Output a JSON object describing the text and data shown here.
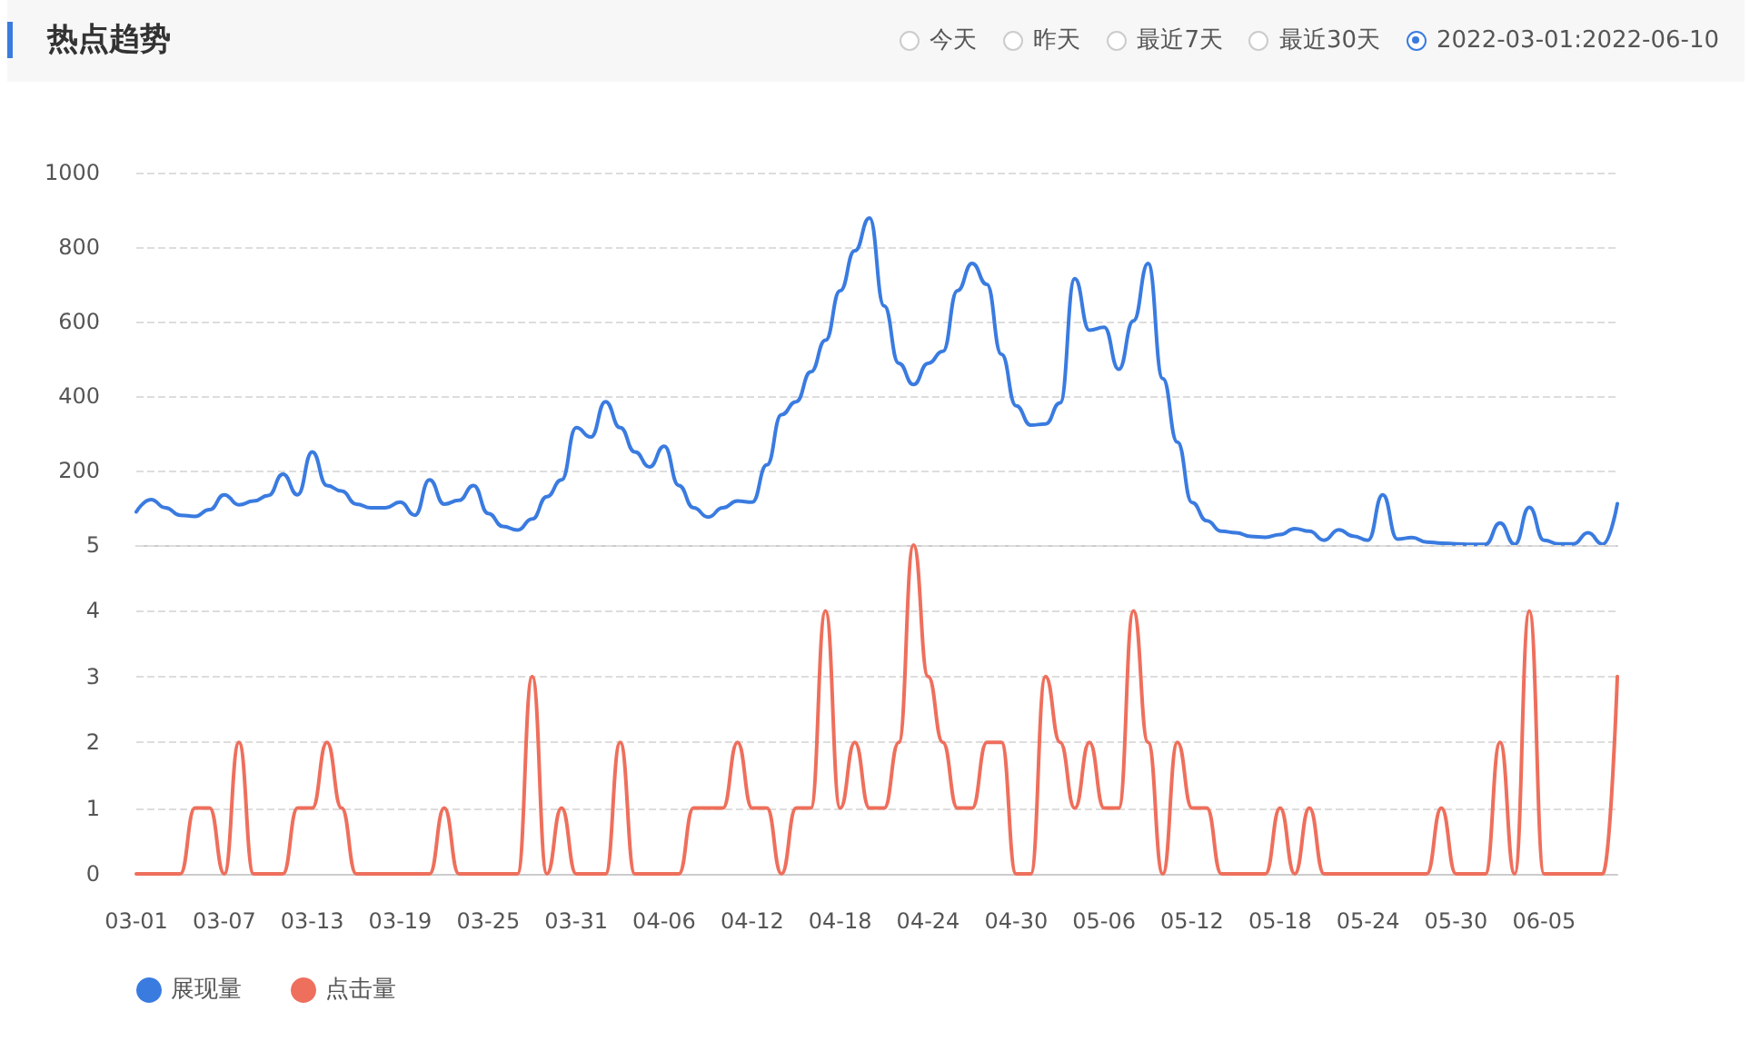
{
  "chart_data": [
    {
      "type": "line",
      "title": "热点趋势",
      "annotations": [
        "今天",
        "昨天",
        "最近7天",
        "最近30天",
        "2022-03-01:2022-06-10"
      ],
      "categories": [
        null,
        null,
        null,
        null,
        null,
        null,
        null,
        null,
        null,
        null,
        null,
        null,
        null,
        null,
        null,
        null,
        null,
        null,
        null,
        null,
        null,
        null,
        null,
        null,
        null,
        null,
        null,
        null,
        null,
        null,
        null,
        null,
        null,
        null,
        null,
        null,
        null,
        null,
        null,
        null,
        null,
        null,
        null,
        null,
        null,
        null,
        null,
        null,
        null,
        null,
        null,
        null,
        null,
        null,
        null,
        null,
        null,
        null,
        null,
        null,
        null,
        null,
        null,
        null,
        null,
        null,
        null,
        null,
        null,
        null,
        null,
        null,
        null,
        null,
        null,
        null,
        null,
        null,
        null,
        null,
        null,
        null,
        null,
        null,
        null,
        null,
        null,
        null,
        null,
        null,
        null,
        null,
        null,
        null,
        null,
        null,
        null,
        null,
        null,
        null,
        null,
        null
      ],
      "series": [
        {
          "name": "展现量",
          "color": "#3a7be0",
          "values": [
            89,
            122,
            100,
            80,
            77,
            95,
            135,
            108,
            118,
            133,
            190,
            135,
            250,
            160,
            145,
            110,
            100,
            100,
            115,
            80,
            175,
            110,
            120,
            160,
            85,
            50,
            40,
            70,
            130,
            175,
            315,
            290,
            385,
            315,
            250,
            210,
            265,
            160,
            100,
            75,
            100,
            118,
            115,
            215,
            350,
            385,
            465,
            550,
            683,
            790,
            878,
            642,
            488,
            431,
            488,
            520,
            683,
            756,
            700,
            512,
            374,
            322,
            325,
            382,
            715,
            577,
            585,
            472,
            602,
            756,
            447,
            276,
            114,
            65,
            37,
            33,
            23,
            21,
            28,
            44,
            37,
            13,
            41,
            24,
            13,
            135,
            16,
            20,
            8,
            5,
            3,
            2,
            2,
            59,
            2,
            101,
            13,
            3,
            3,
            33,
            2,
            111
          ]
        }
      ],
      "ylim": [
        0,
        1000
      ],
      "yticks": [
        {
          "value": 0,
          "label": null
        },
        200,
        400,
        600,
        800,
        1000
      ],
      "tick_labels": "y",
      "grid": "y",
      "legend": "bottom left",
      "marker": "none",
      "line_style": "solid"
    },
    {
      "type": "line",
      "categories": [
        "03-01",
        null,
        null,
        null,
        null,
        null,
        "03-07",
        null,
        null,
        null,
        null,
        null,
        "03-13",
        null,
        null,
        null,
        null,
        null,
        "03-19",
        null,
        null,
        null,
        null,
        null,
        "03-25",
        null,
        null,
        null,
        null,
        null,
        "03-31",
        null,
        null,
        null,
        null,
        null,
        "04-06",
        null,
        null,
        null,
        null,
        null,
        "04-12",
        null,
        null,
        null,
        null,
        null,
        "04-18",
        null,
        null,
        null,
        null,
        null,
        "04-24",
        null,
        null,
        null,
        null,
        null,
        "04-30",
        null,
        null,
        null,
        null,
        null,
        "05-06",
        null,
        null,
        null,
        null,
        null,
        "05-12",
        null,
        null,
        null,
        null,
        null,
        "05-18",
        null,
        null,
        null,
        null,
        null,
        "05-24",
        null,
        null,
        null,
        null,
        null,
        "05-30",
        null,
        null,
        null,
        null,
        null,
        "06-05",
        null,
        null,
        null,
        null,
        null
      ],
      "series": [
        {
          "name": "点击量",
          "color": "#ee6f5c",
          "values": [
            0,
            0,
            0,
            0,
            1,
            1,
            0,
            2,
            0,
            0,
            0,
            1,
            1,
            2,
            1,
            0,
            0,
            0,
            0,
            0,
            0,
            1,
            0,
            0,
            0,
            0,
            0,
            3,
            0,
            1,
            0,
            0,
            0,
            2,
            0,
            0,
            0,
            0,
            1,
            1,
            1,
            2,
            1,
            1,
            0,
            1,
            1,
            4,
            1,
            2,
            1,
            1,
            2,
            5,
            3,
            2,
            1,
            1,
            2,
            2,
            0,
            0,
            3,
            2,
            1,
            2,
            1,
            1,
            4,
            2,
            0,
            2,
            1,
            1,
            0,
            0,
            0,
            0,
            1,
            0,
            1,
            0,
            0,
            0,
            0,
            0,
            0,
            0,
            0,
            1,
            0,
            0,
            0,
            2,
            0,
            4,
            0,
            0,
            0,
            0,
            0,
            3
          ]
        }
      ],
      "ylim": [
        0,
        5
      ],
      "yticks": [
        0,
        1,
        2,
        3,
        4,
        5
      ],
      "grid": "y",
      "legend": "bottom left",
      "marker": "none",
      "line_style": "solid"
    }
  ]
}
